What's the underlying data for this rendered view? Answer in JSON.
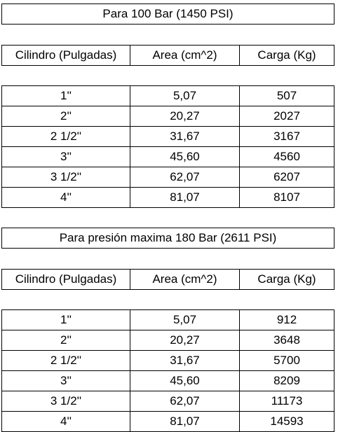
{
  "sections": [
    {
      "title": "Para 100 Bar (1450 PSI)",
      "header": [
        "Cilindro (Pulgadas)",
        "Area (cm^2)",
        "Carga (Kg)"
      ],
      "rows": [
        [
          "1''",
          "5,07",
          "507"
        ],
        [
          "2''",
          "20,27",
          "2027"
        ],
        [
          "2 1/2''",
          "31,67",
          "3167"
        ],
        [
          "3''",
          "45,60",
          "4560"
        ],
        [
          "3 1/2''",
          "62,07",
          "6207"
        ],
        [
          "4''",
          "81,07",
          "8107"
        ]
      ]
    },
    {
      "title": "Para presión maxima 180 Bar (2611 PSI)",
      "header": [
        "Cilindro (Pulgadas)",
        "Area (cm^2)",
        "Carga (Kg)"
      ],
      "rows": [
        [
          "1''",
          "5,07",
          "912"
        ],
        [
          "2''",
          "20,27",
          "3648"
        ],
        [
          "2 1/2''",
          "31,67",
          "5700"
        ],
        [
          "3''",
          "45,60",
          "8209"
        ],
        [
          "3 1/2''",
          "62,07",
          "11173"
        ],
        [
          "4''",
          "81,07",
          "14593"
        ]
      ]
    }
  ]
}
